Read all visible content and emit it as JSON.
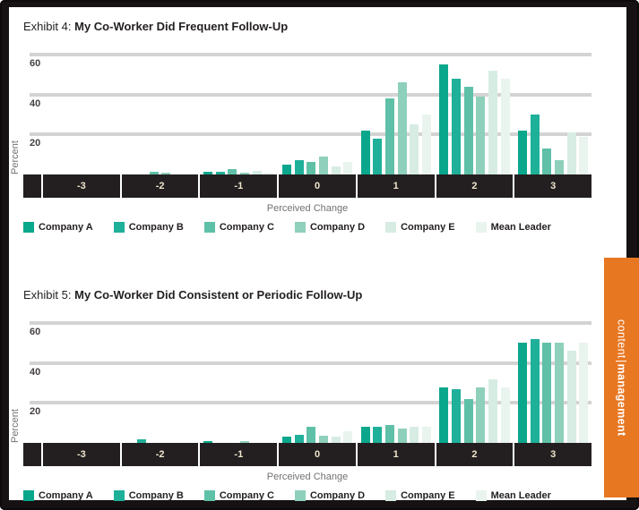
{
  "side_tab": {
    "text_left": "content",
    "separator": "|",
    "text_right": "management",
    "color": "#e87722"
  },
  "chart_data": [
    {
      "type": "bar",
      "exhibit_label": "Exhibit 4:",
      "title": "My Co-Worker Did Frequent Follow-Up",
      "xlabel": "Perceived Change",
      "ylabel": "Percent",
      "categories": [
        "-3",
        "-2",
        "-1",
        "0",
        "1",
        "2",
        "3"
      ],
      "yticks": [
        20,
        40,
        60
      ],
      "ylim": [
        0,
        65
      ],
      "grid": true,
      "legend_position": "bottom",
      "series": [
        {
          "name": "Company A",
          "color": "#0aa78c",
          "values": [
            0,
            0,
            1.5,
            5,
            22,
            55,
            22
          ]
        },
        {
          "name": "Company B",
          "color": "#1fb09a",
          "values": [
            0,
            0,
            1.5,
            7,
            18,
            48,
            30
          ]
        },
        {
          "name": "Company C",
          "color": "#5fc0a8",
          "values": [
            0,
            1.5,
            2.5,
            6.5,
            38,
            44,
            13
          ]
        },
        {
          "name": "Company D",
          "color": "#8ed0bb",
          "values": [
            0,
            1,
            1,
            9,
            46,
            39,
            7
          ]
        },
        {
          "name": "Company E",
          "color": "#d7ece3",
          "values": [
            0,
            0,
            2,
            4,
            25,
            52,
            21
          ]
        },
        {
          "name": "Mean Leader",
          "color": "#eaf4ee",
          "values": [
            0,
            0,
            1,
            6.5,
            30,
            48,
            19
          ]
        }
      ]
    },
    {
      "type": "bar",
      "exhibit_label": "Exhibit 5:",
      "title": "My Co-Worker Did Consistent or Periodic Follow-Up",
      "xlabel": "Perceived Change",
      "ylabel": "Percent",
      "categories": [
        "-3",
        "-2",
        "-1",
        "0",
        "1",
        "2",
        "3"
      ],
      "yticks": [
        20,
        40,
        60
      ],
      "ylim": [
        0,
        65
      ],
      "grid": true,
      "legend_position": "bottom",
      "series": [
        {
          "name": "Company A",
          "color": "#0aa78c",
          "values": [
            0,
            0,
            1,
            3,
            8,
            28,
            50
          ]
        },
        {
          "name": "Company B",
          "color": "#1fb09a",
          "values": [
            0,
            2,
            0,
            4,
            8,
            27,
            52
          ]
        },
        {
          "name": "Company C",
          "color": "#5fc0a8",
          "values": [
            0,
            0,
            0,
            8,
            9,
            22,
            50
          ]
        },
        {
          "name": "Company D",
          "color": "#8ed0bb",
          "values": [
            0,
            0,
            1,
            3.5,
            7,
            28,
            50
          ]
        },
        {
          "name": "Company E",
          "color": "#d7ece3",
          "values": [
            0,
            0,
            0,
            3,
            8,
            32,
            46
          ]
        },
        {
          "name": "Mean Leader",
          "color": "#eaf4ee",
          "values": [
            0,
            0,
            0,
            6,
            8,
            28,
            50
          ]
        }
      ]
    }
  ]
}
